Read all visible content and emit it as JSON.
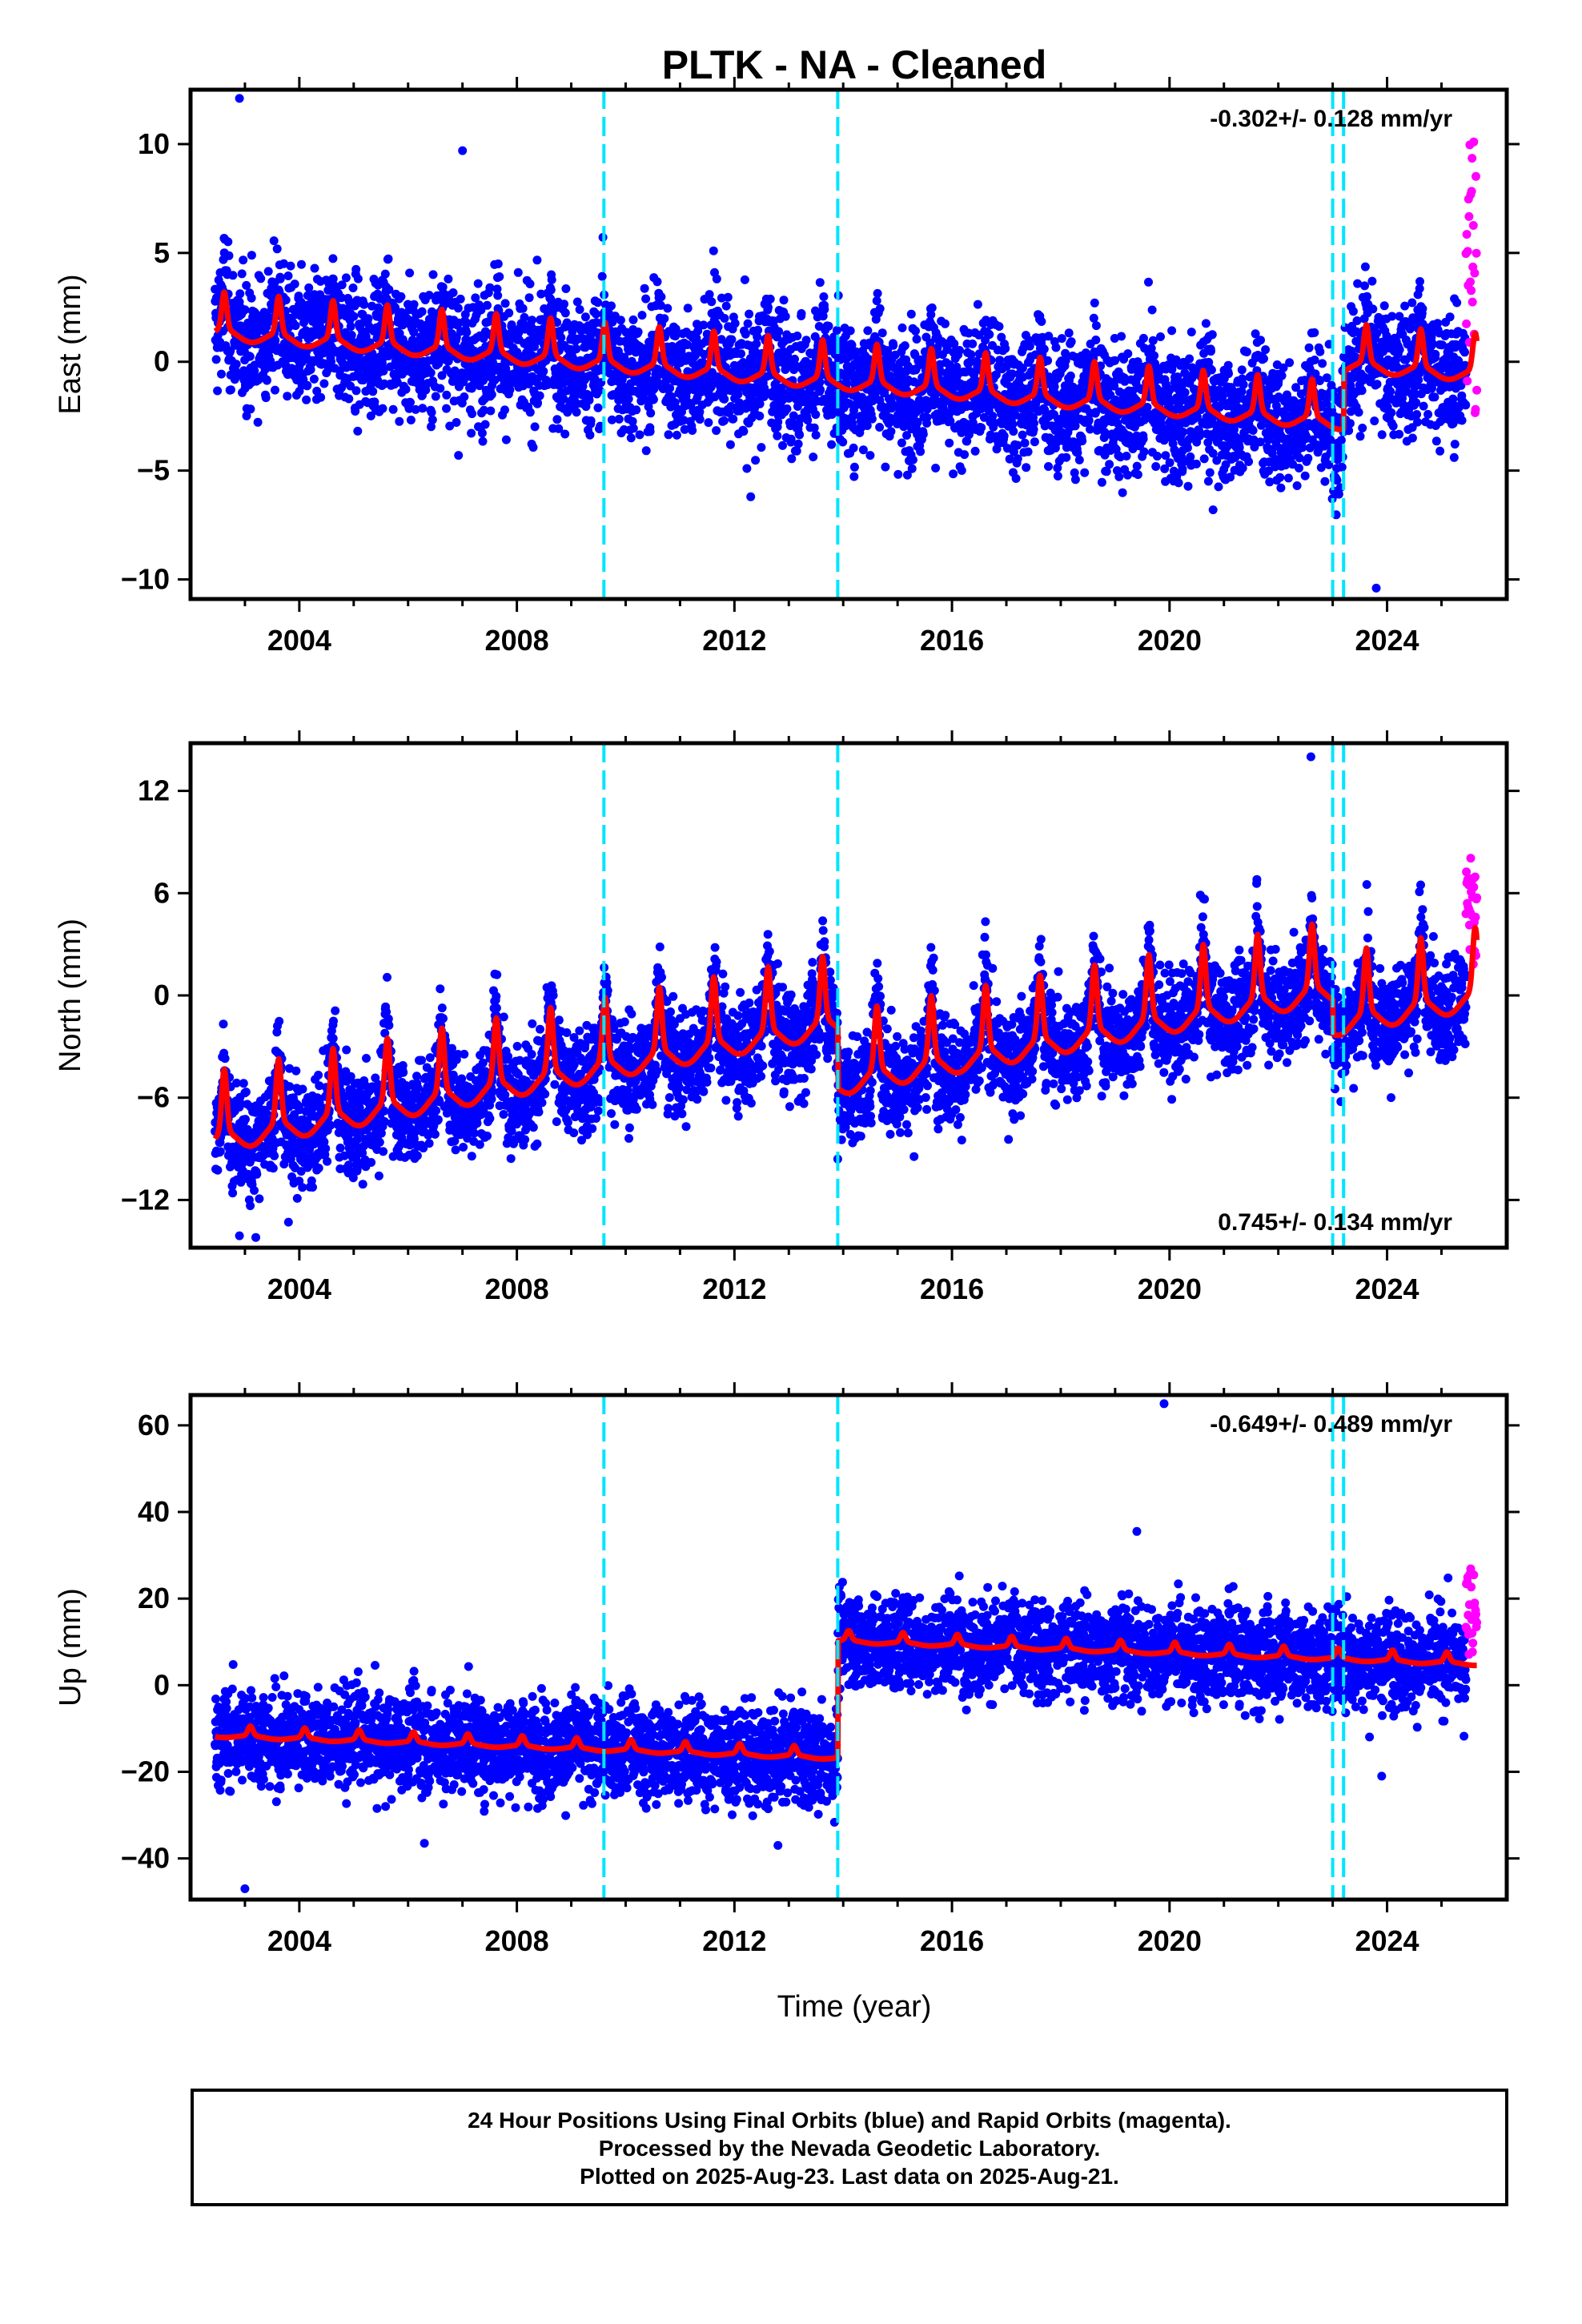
{
  "chart_data": {
    "type": "scatter",
    "title": "PLTK  - NA - Cleaned",
    "xlabel": "Time (year)",
    "xlim": [
      2002.0,
      2026.2
    ],
    "xticks": [
      2004,
      2008,
      2012,
      2016,
      2020,
      2024
    ],
    "xtick_labels": [
      "2004",
      "2008",
      "2012",
      "2016",
      "2020",
      "2024"
    ],
    "equipment_change_lines": [
      2009.6,
      2013.9,
      2023.0,
      2023.2
    ],
    "colors": {
      "final_orbits": "#0000ff",
      "rapid_orbits": "#ff00ff",
      "model": "#ff0000",
      "equipment_lines": "#00e5ff"
    },
    "panels": [
      {
        "name": "east",
        "ylabel": "East (mm)",
        "ylim": [
          -10.9,
          12.5
        ],
        "yticks": [
          -10,
          -5,
          0,
          5,
          10
        ],
        "ytick_labels": [
          "−10",
          "−5",
          "0",
          "5",
          "10"
        ],
        "rate": "-0.302+/- 0.128 mm/yr",
        "rate_position": "top-right",
        "model": {
          "trend_start": 1.8,
          "trend_slope": -0.2,
          "amplitude": 1.7,
          "phase": 0.62,
          "offsets": [
            [
              2023.2,
              2.7
            ]
          ]
        },
        "scatter": {
          "sigma": 1.45
        },
        "rapid": {
          "start": 2025.45,
          "end": 2025.65,
          "ymin": -2.9,
          "ymax": 10.2
        },
        "outliers": [
          [
            2002.9,
            12.1
          ],
          [
            2007.0,
            9.7
          ],
          [
            2012.3,
            -6.2
          ],
          [
            2020.8,
            -6.8
          ],
          [
            2023.8,
            -10.4
          ]
        ]
      },
      {
        "name": "north",
        "ylabel": "North (mm)",
        "ylim": [
          -14.8,
          14.8
        ],
        "yticks": [
          -12,
          -6,
          0,
          6,
          12
        ],
        "ytick_labels": [
          "−12",
          "−6",
          "0",
          "6",
          "12"
        ],
        "rate": "0.745+/- 0.134 mm/yr",
        "rate_position": "bottom-right",
        "model": {
          "trend_start": -7.6,
          "trend_slope": 0.6,
          "amplitude": 3.7,
          "phase": 0.62,
          "offsets": [
            [
              2013.9,
              -3.5
            ],
            [
              2023.0,
              -2.0
            ]
          ]
        },
        "scatter": {
          "sigma": 1.5
        },
        "rapid": {
          "start": 2025.45,
          "end": 2025.65,
          "ymin": 1.7,
          "ymax": 8.2
        },
        "outliers": [
          [
            2002.9,
            -14.1
          ],
          [
            2003.2,
            -14.2
          ],
          [
            2003.8,
            -13.3
          ],
          [
            2019.8,
            -4.0
          ],
          [
            2022.6,
            14.0
          ],
          [
            2013.9,
            -9.6
          ]
        ]
      },
      {
        "name": "up",
        "ylabel": "Up (mm)",
        "ylim": [
          -49.5,
          67.0
        ],
        "yticks": [
          -40,
          -20,
          0,
          20,
          40,
          60
        ],
        "ytick_labels": [
          "−40",
          "−20",
          "0",
          "20",
          "40",
          "60"
        ],
        "rate": "-0.649+/- 0.489 mm/yr",
        "rate_position": "top-right",
        "model": {
          "trend_start": -11.0,
          "trend_slope": -0.45,
          "amplitude": 2.2,
          "phase": 0.1,
          "offsets": [
            [
              2013.9,
              27.0
            ]
          ]
        },
        "scatter": {
          "sigma": 5.5
        },
        "rapid": {
          "start": 2025.45,
          "end": 2025.65,
          "ymin": 7.0,
          "ymax": 27.0
        },
        "outliers": [
          [
            2003.0,
            -47.0
          ],
          [
            2019.9,
            65.0
          ],
          [
            2019.4,
            35.5
          ],
          [
            2023.9,
            -21.0
          ],
          [
            2012.8,
            -37.0
          ],
          [
            2006.3,
            -36.5
          ]
        ]
      }
    ]
  },
  "footer": {
    "line1": "24 Hour Positions Using Final Orbits (blue) and Rapid Orbits (magenta).",
    "line2": "Processed by the Nevada Geodetic Laboratory.",
    "line3": "Plotted on 2025-Aug-23. Last data on 2025-Aug-21."
  }
}
